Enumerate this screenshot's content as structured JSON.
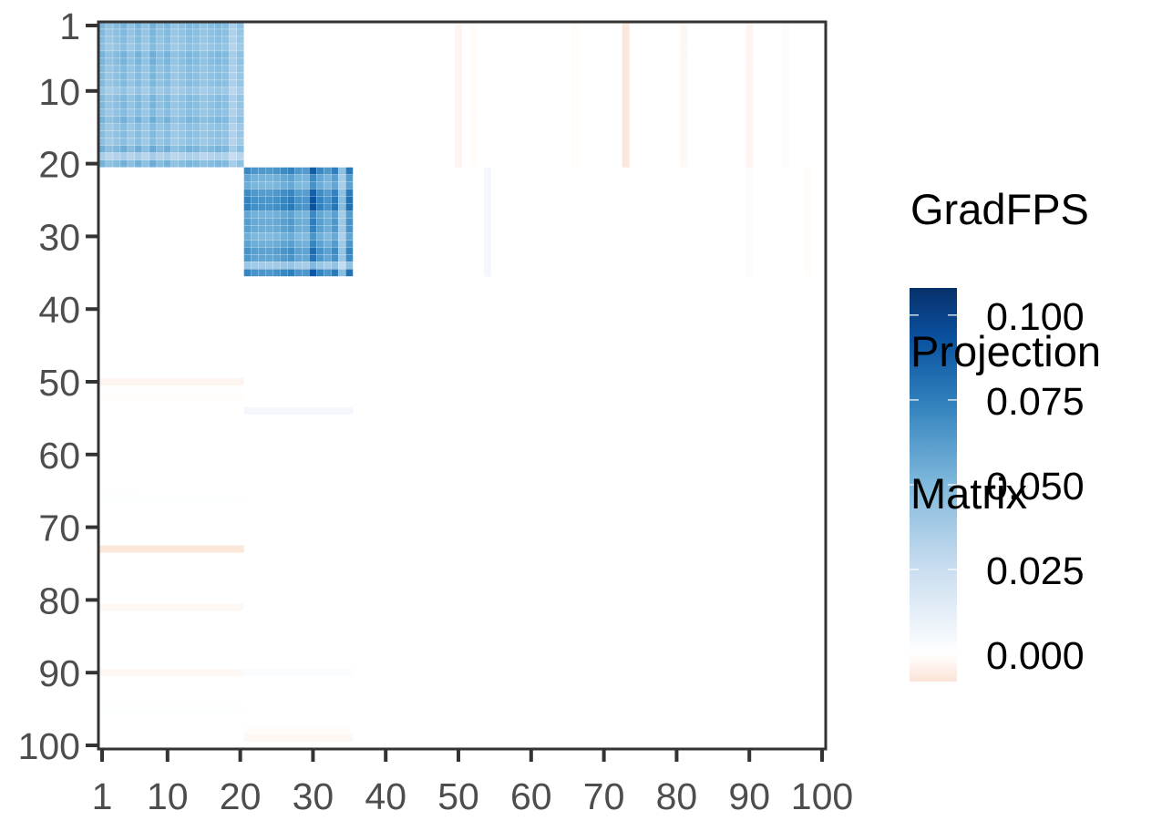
{
  "chart_data": {
    "type": "heatmap",
    "title": "",
    "xlabel": "",
    "ylabel": "",
    "n_rows": 100,
    "n_cols": 100,
    "x_ticks": [
      "1",
      "10",
      "20",
      "30",
      "40",
      "50",
      "60",
      "70",
      "80",
      "90",
      "100"
    ],
    "y_ticks": [
      "1",
      "10",
      "20",
      "30",
      "40",
      "50",
      "60",
      "70",
      "80",
      "90",
      "100"
    ],
    "x_tick_values": [
      1,
      10,
      20,
      30,
      40,
      50,
      60,
      70,
      80,
      90,
      100
    ],
    "y_tick_values": [
      1,
      10,
      20,
      30,
      40,
      50,
      60,
      70,
      80,
      90,
      100
    ],
    "y_axis_reversed": true,
    "grid": false,
    "legend": {
      "title_lines": [
        "GradFPS",
        "Projection",
        "Matrix"
      ],
      "position": "right",
      "breaks": [
        "0.100",
        "0.075",
        "0.050",
        "0.025",
        "0.000"
      ],
      "break_values": [
        0.1,
        0.075,
        0.05,
        0.025,
        0.0
      ],
      "range": [
        -0.008,
        0.108
      ],
      "colorscale": [
        "#fbe6dc",
        "#ffffff",
        "#c6dbef",
        "#6baed6",
        "#2171b5",
        "#08306b"
      ]
    },
    "blocks": [
      {
        "rows": [
          1,
          20
        ],
        "cols": [
          1,
          20
        ],
        "approx_value_range": [
          0.035,
          0.065
        ],
        "description": "block 1 medium blue"
      },
      {
        "rows": [
          21,
          35
        ],
        "cols": [
          21,
          35
        ],
        "approx_value_range": [
          0.04,
          0.1
        ],
        "description": "block 2 dark blue"
      }
    ],
    "faint_entries": [
      {
        "rows": [
          1,
          20
        ],
        "col": 50,
        "value": -0.003
      },
      {
        "rows": [
          1,
          20
        ],
        "col": 52,
        "value": -0.001
      },
      {
        "rows": [
          1,
          20
        ],
        "col": 66,
        "value": -0.001
      },
      {
        "rows": [
          1,
          20
        ],
        "col": 73,
        "value": -0.007
      },
      {
        "rows": [
          1,
          20
        ],
        "col": 81,
        "value": -0.002
      },
      {
        "rows": [
          1,
          20
        ],
        "col": 90,
        "value": -0.003
      },
      {
        "rows": [
          1,
          20
        ],
        "col": 95,
        "value": 0.002
      },
      {
        "rows": [
          21,
          35
        ],
        "col": 54,
        "value": 0.005
      },
      {
        "rows": [
          21,
          35
        ],
        "col": 90,
        "value": 0.002
      },
      {
        "rows": [
          21,
          35
        ],
        "col": 98,
        "value": -0.001
      },
      {
        "row": 50,
        "cols": [
          1,
          20
        ],
        "value": -0.003
      },
      {
        "row": 52,
        "cols": [
          1,
          20
        ],
        "value": -0.001
      },
      {
        "row": 54,
        "cols": [
          21,
          35
        ],
        "value": 0.005
      },
      {
        "row": 66,
        "cols": [
          1,
          20
        ],
        "value": 0.001
      },
      {
        "row": 73,
        "cols": [
          1,
          20
        ],
        "value": -0.007
      },
      {
        "row": 81,
        "cols": [
          1,
          20
        ],
        "value": -0.002
      },
      {
        "row": 90,
        "cols": [
          1,
          20
        ],
        "value": -0.002
      },
      {
        "row": 90,
        "cols": [
          21,
          35
        ],
        "value": 0.002
      },
      {
        "row": 95,
        "cols": [
          1,
          20
        ],
        "value": 0.001
      },
      {
        "row": 98,
        "cols": [
          21,
          35
        ],
        "value": -0.001
      },
      {
        "row": 99,
        "cols": [
          21,
          35
        ],
        "value": -0.002
      }
    ]
  }
}
